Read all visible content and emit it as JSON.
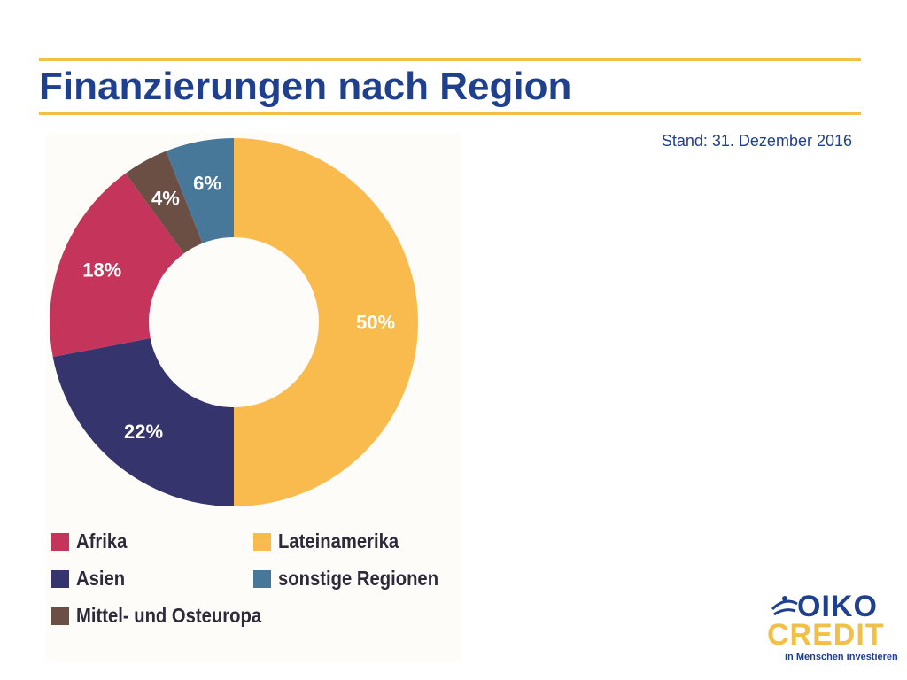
{
  "header": {
    "title": "Finanzierungen nach Region",
    "stand": "Stand: 31. Dezember 2016"
  },
  "chart_data": {
    "type": "pie",
    "variant": "donut",
    "categories": [
      "Lateinamerika",
      "Asien",
      "Afrika",
      "Mittel- und Osteuropa",
      "sonstige Regionen"
    ],
    "values": [
      50,
      22,
      18,
      4,
      6
    ],
    "value_labels": [
      "50%",
      "22%",
      "18%",
      "4%",
      "6%"
    ],
    "colors": [
      "#f9bb4e",
      "#35346d",
      "#c5345a",
      "#6b4e44",
      "#47789a"
    ],
    "legend_placement": "bottom"
  },
  "legend": {
    "items": [
      {
        "label": "Afrika",
        "color": "#c5345a"
      },
      {
        "label": "Lateinamerika",
        "color": "#f9bb4e"
      },
      {
        "label": "Asien",
        "color": "#35346d"
      },
      {
        "label": "sonstige Regionen",
        "color": "#47789a"
      },
      {
        "label": "Mittel- und Osteuropa",
        "color": "#6b4e44"
      }
    ]
  },
  "logo": {
    "line1": "OIKO",
    "line2": "CREDIT",
    "tagline": "in Menschen investieren",
    "icon": "oikocredit-logo-mark"
  }
}
